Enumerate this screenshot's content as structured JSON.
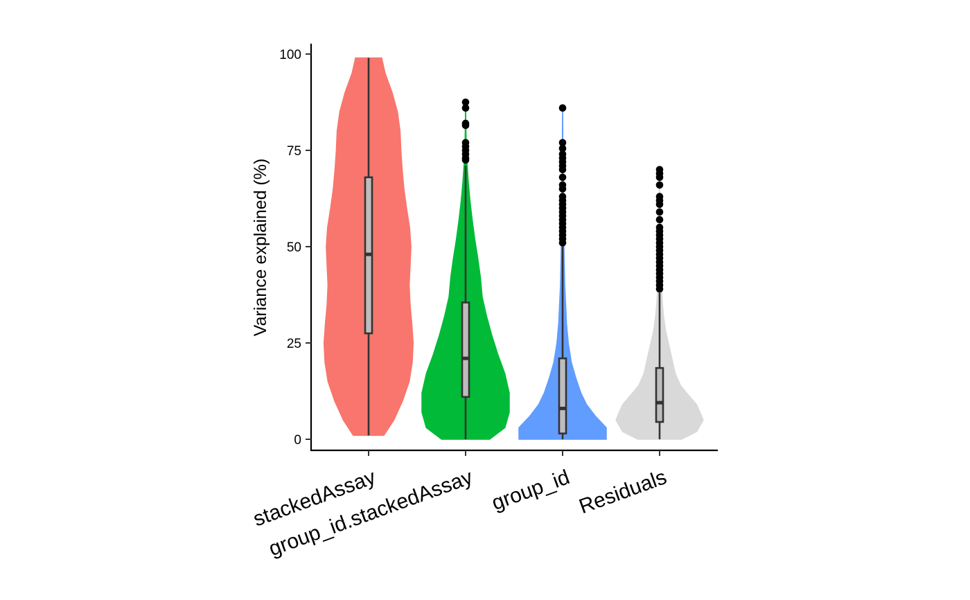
{
  "chart_data": {
    "type": "violin",
    "title": "",
    "ylabel": "Variance explained (%)",
    "xlabel": "",
    "ylim": [
      -2.5,
      102.5
    ],
    "yticks": [
      0,
      25,
      50,
      75,
      100
    ],
    "ytick_labels": [
      "0",
      "25",
      "50",
      "75",
      "100"
    ],
    "legend": "none",
    "grid": false,
    "series": [
      {
        "category": "stackedAssay",
        "color": "#F8766D",
        "min": 1,
        "q1": 27.5,
        "median": 48,
        "q3": 68,
        "max": 99,
        "outliers": [],
        "density_profile": [
          [
            1,
            0.35
          ],
          [
            5,
            0.58
          ],
          [
            10,
            0.78
          ],
          [
            15,
            0.93
          ],
          [
            20,
            1.0
          ],
          [
            25,
            1.02
          ],
          [
            30,
            0.99
          ],
          [
            35,
            0.95
          ],
          [
            40,
            0.93
          ],
          [
            45,
            0.95
          ],
          [
            50,
            0.97
          ],
          [
            55,
            0.94
          ],
          [
            60,
            0.87
          ],
          [
            65,
            0.81
          ],
          [
            70,
            0.77
          ],
          [
            75,
            0.74
          ],
          [
            80,
            0.72
          ],
          [
            85,
            0.66
          ],
          [
            90,
            0.54
          ],
          [
            95,
            0.38
          ],
          [
            99,
            0.3
          ]
        ]
      },
      {
        "category": "group_id.stackedAssay",
        "color": "#00BA38",
        "min": 0,
        "q1": 11,
        "median": 21,
        "q3": 35.5,
        "max": 71,
        "outliers": [
          72.5,
          73,
          74,
          75,
          76,
          77,
          81.5,
          82,
          86,
          87.5
        ],
        "density_profile": [
          [
            0,
            0.55
          ],
          [
            3,
            0.9
          ],
          [
            7,
            1.0
          ],
          [
            12,
            1.0
          ],
          [
            17,
            0.9
          ],
          [
            22,
            0.74
          ],
          [
            27,
            0.6
          ],
          [
            32,
            0.48
          ],
          [
            37,
            0.38
          ],
          [
            42,
            0.34
          ],
          [
            47,
            0.28
          ],
          [
            52,
            0.21
          ],
          [
            57,
            0.15
          ],
          [
            62,
            0.1
          ],
          [
            67,
            0.06
          ],
          [
            72,
            0.03
          ],
          [
            77,
            0.012
          ],
          [
            82,
            0.006
          ],
          [
            87,
            0.002
          ]
        ]
      },
      {
        "category": "group_id",
        "color": "#619CFF",
        "min": 0,
        "q1": 1.5,
        "median": 8,
        "q3": 21,
        "max": 50,
        "outliers": [
          51,
          52,
          53,
          54,
          55,
          56,
          57,
          58,
          59,
          60,
          61,
          62,
          63,
          65,
          66,
          68,
          70,
          71,
          72,
          73,
          74,
          75.5,
          77,
          86
        ],
        "density_profile": [
          [
            0,
            1.0
          ],
          [
            3,
            1.0
          ],
          [
            6,
            0.75
          ],
          [
            9,
            0.55
          ],
          [
            12,
            0.42
          ],
          [
            16,
            0.3
          ],
          [
            20,
            0.2
          ],
          [
            25,
            0.13
          ],
          [
            30,
            0.09
          ],
          [
            35,
            0.07
          ],
          [
            40,
            0.05
          ],
          [
            45,
            0.04
          ],
          [
            50,
            0.03
          ],
          [
            55,
            0.02
          ],
          [
            60,
            0.015
          ],
          [
            65,
            0.012
          ],
          [
            70,
            0.009
          ],
          [
            75,
            0.007
          ],
          [
            80,
            0.004
          ],
          [
            86,
            0.002
          ]
        ]
      },
      {
        "category": "Residuals",
        "color": "#D9D9D9",
        "min": 0,
        "q1": 4.5,
        "median": 9.5,
        "q3": 18.5,
        "max": 38,
        "outliers": [
          39,
          40,
          41,
          42,
          43,
          44,
          45,
          46,
          47,
          48,
          49,
          50,
          51,
          52,
          53,
          54,
          55,
          57,
          59,
          61,
          62,
          63,
          66,
          68,
          69,
          70
        ],
        "density_profile": [
          [
            0,
            0.5
          ],
          [
            2,
            0.85
          ],
          [
            5,
            1.0
          ],
          [
            9,
            0.85
          ],
          [
            12,
            0.62
          ],
          [
            14,
            0.48
          ],
          [
            17,
            0.36
          ],
          [
            20,
            0.3
          ],
          [
            24,
            0.22
          ],
          [
            28,
            0.14
          ],
          [
            32,
            0.09
          ],
          [
            36,
            0.06
          ],
          [
            40,
            0.04
          ],
          [
            45,
            0.025
          ],
          [
            50,
            0.015
          ],
          [
            55,
            0.01
          ],
          [
            60,
            0.007
          ],
          [
            65,
            0.004
          ],
          [
            70,
            0.002
          ]
        ]
      }
    ]
  }
}
